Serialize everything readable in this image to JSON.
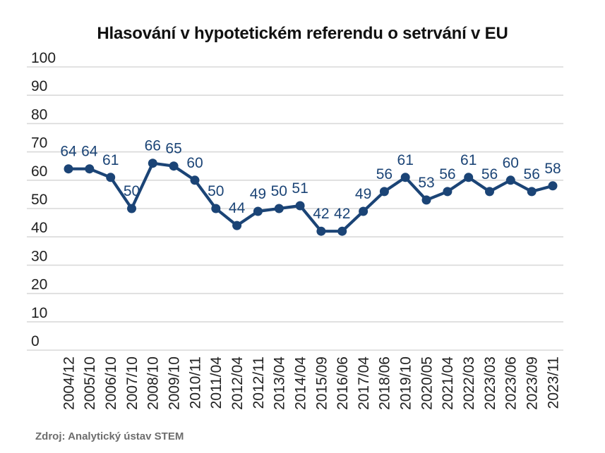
{
  "chart_data": {
    "type": "line",
    "title": "Hlasování v hypotetickém referendu o setrvání v EU",
    "categories": [
      "2004/12",
      "2005/10",
      "2006/10",
      "2007/10",
      "2008/10",
      "2009/10",
      "2010/11",
      "2011/04",
      "2012/04",
      "2012/11",
      "2013/04",
      "2014/04",
      "2015/09",
      "2016/06",
      "2017/04",
      "2018/06",
      "2019/10",
      "2020/05",
      "2021/04",
      "2022/03",
      "2023/03",
      "2023/06",
      "2023/09",
      "2023/11"
    ],
    "values": [
      64,
      64,
      61,
      50,
      66,
      65,
      60,
      50,
      44,
      49,
      50,
      51,
      42,
      42,
      49,
      56,
      61,
      53,
      56,
      61,
      56,
      60,
      56,
      58
    ],
    "xlabel": "",
    "ylabel": "",
    "ylim": [
      0,
      100
    ],
    "y_ticks": [
      100,
      90,
      80,
      70,
      60,
      50,
      40,
      30,
      20,
      10,
      0
    ],
    "grid": true,
    "legend": "none",
    "data_labels_shown": true,
    "colors": {
      "series": "#1b4476",
      "gridline": "#d9d9d9",
      "axis_tick": "#212121",
      "title": "#111111",
      "source": "#6d6d6d"
    }
  },
  "footer": {
    "source": "Zdroj: Analytický ústav STEM"
  }
}
